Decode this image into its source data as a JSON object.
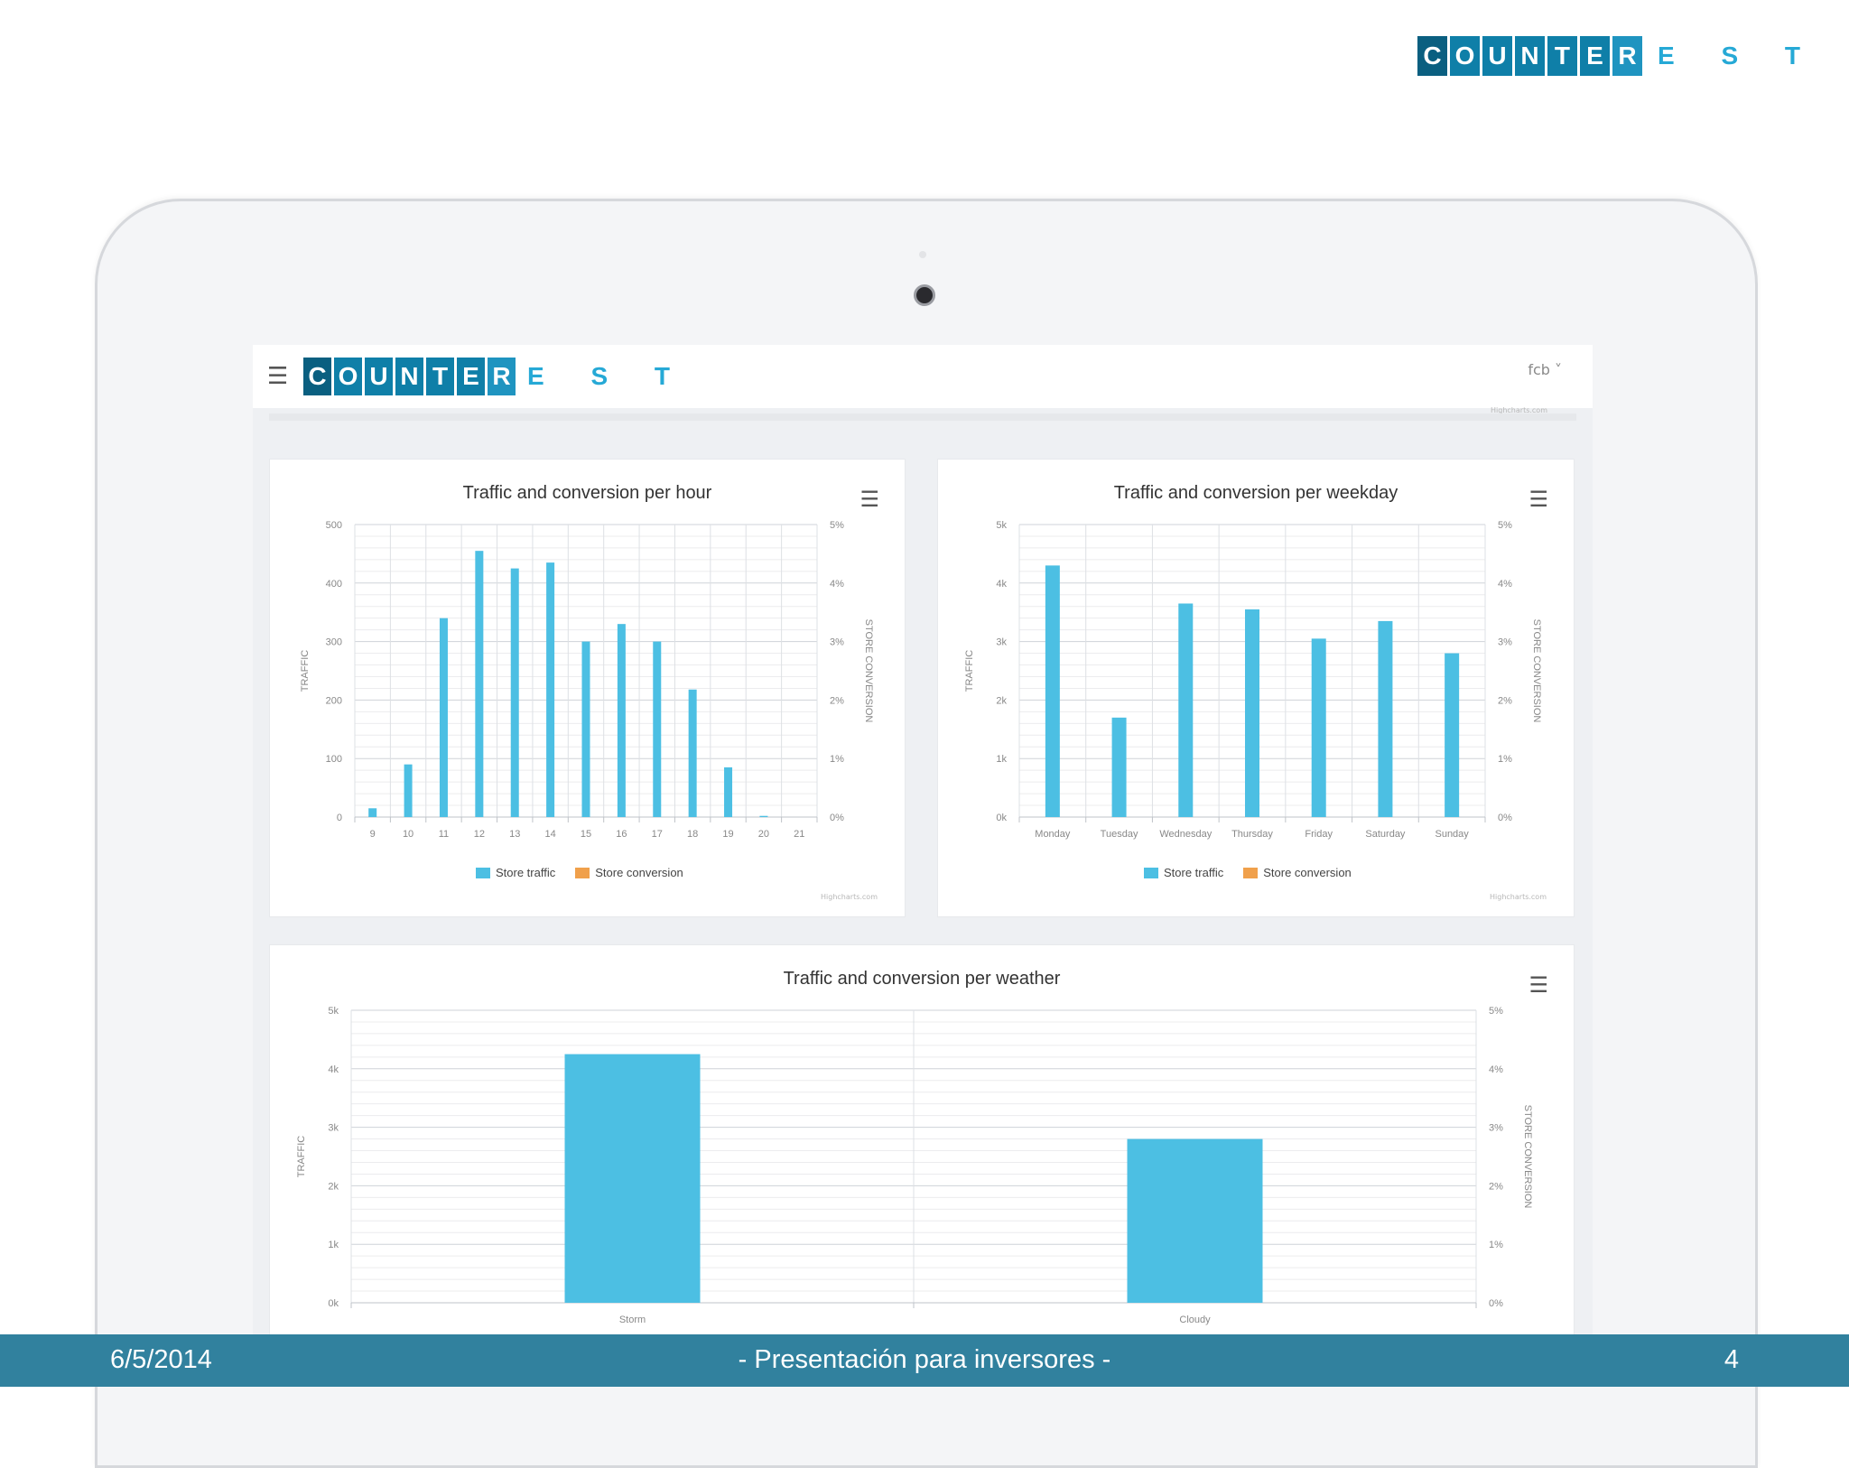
{
  "brand": {
    "letters": [
      "C",
      "O",
      "U",
      "N",
      "T",
      "E",
      "R"
    ],
    "tail": "E S T"
  },
  "app": {
    "menu_icon": "hamburger-icon",
    "brand": {
      "letters": [
        "C",
        "O",
        "U",
        "N",
        "T",
        "E",
        "R"
      ],
      "tail": "E S T"
    },
    "user_menu": "fcb ˅",
    "credit": "Highcharts.com"
  },
  "colors": {
    "traffic": "#4cbfe3",
    "conversion": "#f0a04b",
    "brand": "#0f7fa8",
    "footer": "#31819e"
  },
  "charts": [
    {
      "id": "hour",
      "title": "Traffic and conversion per hour",
      "menu_icon": "chart-menu-icon",
      "legend": [
        "Store traffic",
        "Store conversion"
      ],
      "credit": "Highcharts.com"
    },
    {
      "id": "weekday",
      "title": "Traffic and conversion per weekday",
      "menu_icon": "chart-menu-icon",
      "legend": [
        "Store traffic",
        "Store conversion"
      ],
      "credit": "Highcharts.com"
    },
    {
      "id": "weather",
      "title": "Traffic and conversion per weather",
      "menu_icon": "chart-menu-icon",
      "legend": [],
      "credit": ""
    }
  ],
  "chart_data": [
    {
      "type": "bar",
      "title": "Traffic and conversion per hour",
      "categories": [
        "9",
        "10",
        "11",
        "12",
        "13",
        "14",
        "15",
        "16",
        "17",
        "18",
        "19",
        "20",
        "21"
      ],
      "series": [
        {
          "name": "Store traffic",
          "values": [
            15,
            90,
            340,
            455,
            425,
            435,
            300,
            330,
            300,
            218,
            85,
            2,
            0
          ]
        },
        {
          "name": "Store conversion",
          "values": [
            0,
            0,
            0,
            0,
            0,
            0,
            0,
            0,
            0,
            0,
            0,
            0,
            0
          ]
        }
      ],
      "ylabel": "TRAFFIC",
      "ylabel_right": "STORE CONVERSION",
      "yticks": [
        "0",
        "100",
        "200",
        "300",
        "400",
        "500"
      ],
      "yticks_right": [
        "0%",
        "1%",
        "2%",
        "3%",
        "4%",
        "5%"
      ],
      "ylim": [
        0,
        500
      ],
      "ylim_right": [
        0,
        5
      ],
      "grid": true,
      "legend_position": "bottom"
    },
    {
      "type": "bar",
      "title": "Traffic and conversion per weekday",
      "categories": [
        "Monday",
        "Tuesday",
        "Wednesday",
        "Thursday",
        "Friday",
        "Saturday",
        "Sunday"
      ],
      "series": [
        {
          "name": "Store traffic",
          "values": [
            4300,
            1700,
            3650,
            3550,
            3050,
            3350,
            2800
          ]
        },
        {
          "name": "Store conversion",
          "values": [
            0,
            0,
            0,
            0,
            0,
            0,
            0
          ]
        }
      ],
      "ylabel": "TRAFFIC",
      "ylabel_right": "STORE CONVERSION",
      "yticks": [
        "0k",
        "1k",
        "2k",
        "3k",
        "4k",
        "5k"
      ],
      "yticks_right": [
        "0%",
        "1%",
        "2%",
        "3%",
        "4%",
        "5%"
      ],
      "ylim": [
        0,
        5000
      ],
      "ylim_right": [
        0,
        5
      ],
      "grid": true,
      "legend_position": "bottom"
    },
    {
      "type": "bar",
      "title": "Traffic and conversion per weather",
      "categories": [
        "Storm",
        "Cloudy"
      ],
      "series": [
        {
          "name": "Store traffic",
          "values": [
            4250,
            2800
          ]
        }
      ],
      "ylabel": "TRAFFIC",
      "ylabel_right": "STORE CONVERSION",
      "yticks": [
        "0k",
        "1k",
        "2k",
        "3k",
        "4k",
        "5k"
      ],
      "yticks_right": [
        "0%",
        "1%",
        "2%",
        "3%",
        "4%",
        "5%"
      ],
      "ylim": [
        0,
        5000
      ],
      "ylim_right": [
        0,
        5
      ],
      "grid": true
    }
  ],
  "footer": {
    "date": "6/5/2014",
    "title": "- Presentación para inversores -",
    "page": "4"
  }
}
